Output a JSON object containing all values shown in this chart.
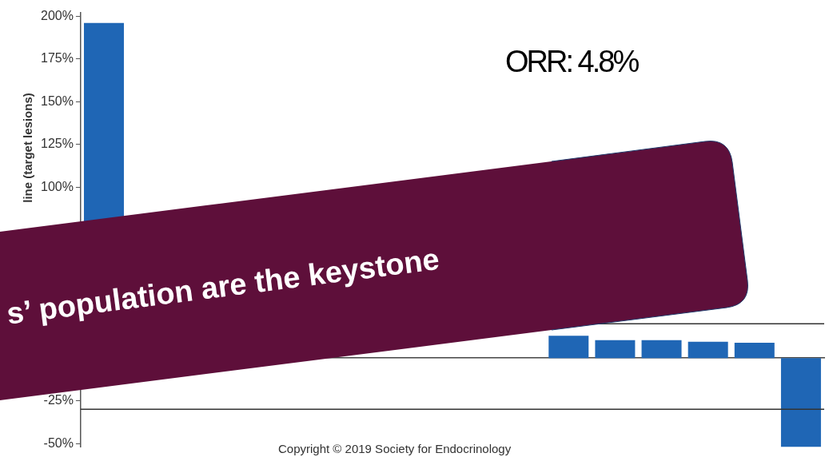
{
  "chart_data": {
    "type": "bar",
    "ylabel": "line (target lesions)",
    "categories": [
      null,
      null,
      null,
      null,
      null,
      null,
      null,
      null,
      null,
      null,
      null,
      null,
      null,
      null,
      null,
      null
    ],
    "values": [
      196,
      null,
      null,
      null,
      null,
      null,
      null,
      null,
      null,
      null,
      13,
      10.5,
      10.5,
      9.5,
      9,
      -52
    ],
    "color": "#1f66b5",
    "ylim": [
      -52,
      202
    ],
    "yticks": [
      {
        "value": 200,
        "label": "200%"
      },
      {
        "value": 175,
        "label": "175%"
      },
      {
        "value": 150,
        "label": "150%"
      },
      {
        "value": 125,
        "label": "125%"
      },
      {
        "value": 100,
        "label": "100%"
      },
      {
        "value": -25,
        "label": "-25%"
      },
      {
        "value": -50,
        "label": "-50%"
      }
    ],
    "ref_lines": [
      {
        "axis": "y",
        "value": 20,
        "color": "#333333"
      },
      {
        "axis": "y",
        "value": -30,
        "color": "#333333"
      }
    ],
    "annotations": [
      "ORR: 4.8%",
      "s’ population are the keystone",
      "Copyright © 2019 Society for Endocrinology"
    ],
    "grid": false,
    "legend": false
  }
}
